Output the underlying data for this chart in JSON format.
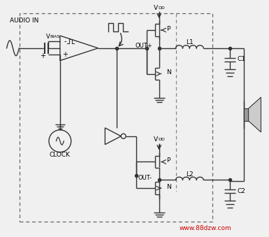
{
  "bg_color": "#f0f0f0",
  "line_color": "#333333",
  "text_color": "#000000",
  "watermark_color": "#cc0000",
  "watermark": "www.88dzw.com",
  "audio_in": "AUDIO IN",
  "vbias": "V",
  "vbias_sub": "BIAS",
  "clock": "CLOCK",
  "out_plus": "OUT+",
  "out_minus": "OUT-",
  "p_label": "P",
  "n_label": "N",
  "l1_label": "L1",
  "l2_label": "L2",
  "c1_label": "C1",
  "c2_label": "C2",
  "vdd": "V",
  "vdd_sub": "DD"
}
